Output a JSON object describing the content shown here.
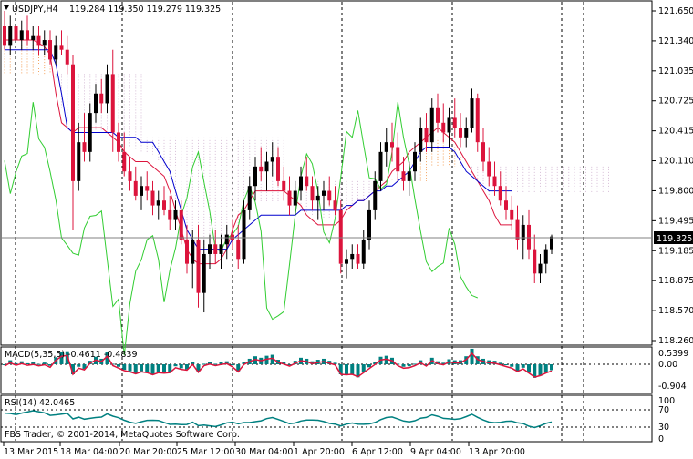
{
  "header": {
    "symbol": "USDJPY,H4",
    "ohlc": "119.284 119.350 119.279 119.325"
  },
  "price_panel": {
    "last_price": "119.325",
    "y_ticks": [
      "121.650",
      "121.340",
      "121.035",
      "120.725",
      "120.415",
      "120.110",
      "119.800",
      "119.495",
      "119.185",
      "118.875",
      "118.570",
      "118.260"
    ]
  },
  "macd_panel": {
    "label": "MACD(5,35,5) -0.4611 -0.4839",
    "y_ticks": [
      "0.5399",
      "0.00",
      "-0.904"
    ]
  },
  "rsi_panel": {
    "label": "RSI(14) 42.0465",
    "copyright": "FBS Trader, © 2001-2014, MetaQuotes Software Corp.",
    "y_ticks": [
      "100",
      "70",
      "30",
      "0"
    ]
  },
  "time_axis": {
    "labels": [
      "13 Mar 2015",
      "18 Mar 04:00",
      "20 Mar 20:00",
      "25 Mar 12:00",
      "30 Mar 04:00",
      "1 Apr 20:00",
      "6 Apr 12:00",
      "9 Apr 04:00",
      "13 Apr 20:00"
    ]
  },
  "colors": {
    "bull": "#000000",
    "bear": "#dc143c",
    "tenkan": "#dc143c",
    "kijun": "#0000cd",
    "chikou": "#32cd32",
    "kumo_a": "#f4a460",
    "kumo_b": "#d8bfd8",
    "macd_hist": "#008080",
    "macd_signal": "#dc143c",
    "rsi": "#008080"
  },
  "chart_data": {
    "type": "candlestick",
    "symbol": "USDJPY",
    "timeframe": "H4",
    "ylim": [
      118.26,
      121.65
    ],
    "candles": [
      {
        "o": 121.5,
        "h": 121.65,
        "l": 121.25,
        "c": 121.3
      },
      {
        "o": 121.3,
        "h": 121.6,
        "l": 121.2,
        "c": 121.5
      },
      {
        "o": 121.5,
        "h": 121.55,
        "l": 121.2,
        "c": 121.35
      },
      {
        "o": 121.35,
        "h": 121.55,
        "l": 121.25,
        "c": 121.45
      },
      {
        "o": 121.45,
        "h": 121.6,
        "l": 121.3,
        "c": 121.35
      },
      {
        "o": 121.35,
        "h": 121.5,
        "l": 121.25,
        "c": 121.4
      },
      {
        "o": 121.4,
        "h": 121.5,
        "l": 121.2,
        "c": 121.3
      },
      {
        "o": 121.3,
        "h": 121.45,
        "l": 121.2,
        "c": 121.35
      },
      {
        "o": 121.35,
        "h": 121.45,
        "l": 121.1,
        "c": 121.15
      },
      {
        "o": 121.15,
        "h": 121.4,
        "l": 121.1,
        "c": 121.3
      },
      {
        "o": 121.3,
        "h": 121.45,
        "l": 121.2,
        "c": 121.25
      },
      {
        "o": 121.25,
        "h": 121.4,
        "l": 121.0,
        "c": 121.1
      },
      {
        "o": 121.1,
        "h": 121.2,
        "l": 119.4,
        "c": 119.9
      },
      {
        "o": 119.9,
        "h": 120.5,
        "l": 119.8,
        "c": 120.3
      },
      {
        "o": 120.3,
        "h": 120.6,
        "l": 120.1,
        "c": 120.2
      },
      {
        "o": 120.2,
        "h": 120.7,
        "l": 120.1,
        "c": 120.6
      },
      {
        "o": 120.6,
        "h": 120.9,
        "l": 120.5,
        "c": 120.8
      },
      {
        "o": 120.8,
        "h": 120.95,
        "l": 120.6,
        "c": 120.7
      },
      {
        "o": 120.7,
        "h": 121.1,
        "l": 120.6,
        "c": 121.0
      },
      {
        "o": 121.0,
        "h": 121.25,
        "l": 120.2,
        "c": 120.4
      },
      {
        "o": 120.4,
        "h": 120.5,
        "l": 120.1,
        "c": 120.2
      },
      {
        "o": 120.2,
        "h": 120.4,
        "l": 119.95,
        "c": 120.0
      },
      {
        "o": 120.0,
        "h": 120.15,
        "l": 119.8,
        "c": 119.9
      },
      {
        "o": 119.9,
        "h": 120.05,
        "l": 119.7,
        "c": 119.75
      },
      {
        "o": 119.75,
        "h": 119.95,
        "l": 119.6,
        "c": 119.85
      },
      {
        "o": 119.85,
        "h": 120.0,
        "l": 119.7,
        "c": 119.8
      },
      {
        "o": 119.8,
        "h": 119.9,
        "l": 119.55,
        "c": 119.65
      },
      {
        "o": 119.65,
        "h": 119.8,
        "l": 119.5,
        "c": 119.7
      },
      {
        "o": 119.7,
        "h": 119.85,
        "l": 119.55,
        "c": 119.6
      },
      {
        "o": 119.6,
        "h": 119.75,
        "l": 119.4,
        "c": 119.5
      },
      {
        "o": 119.5,
        "h": 119.7,
        "l": 119.4,
        "c": 119.6
      },
      {
        "o": 119.6,
        "h": 119.7,
        "l": 119.25,
        "c": 119.3
      },
      {
        "o": 119.3,
        "h": 119.45,
        "l": 118.95,
        "c": 119.05
      },
      {
        "o": 119.05,
        "h": 119.4,
        "l": 118.8,
        "c": 119.3
      },
      {
        "o": 119.3,
        "h": 119.45,
        "l": 118.6,
        "c": 118.75
      },
      {
        "o": 118.75,
        "h": 119.3,
        "l": 118.55,
        "c": 119.15
      },
      {
        "o": 119.15,
        "h": 119.35,
        "l": 119.0,
        "c": 119.25
      },
      {
        "o": 119.25,
        "h": 119.4,
        "l": 119.05,
        "c": 119.15
      },
      {
        "o": 119.15,
        "h": 119.35,
        "l": 119.0,
        "c": 119.25
      },
      {
        "o": 119.25,
        "h": 119.45,
        "l": 119.1,
        "c": 119.35
      },
      {
        "o": 119.35,
        "h": 119.5,
        "l": 119.2,
        "c": 119.3
      },
      {
        "o": 119.3,
        "h": 119.45,
        "l": 119.0,
        "c": 119.1
      },
      {
        "o": 119.1,
        "h": 119.7,
        "l": 119.05,
        "c": 119.6
      },
      {
        "o": 119.6,
        "h": 119.95,
        "l": 119.5,
        "c": 119.85
      },
      {
        "o": 119.85,
        "h": 120.15,
        "l": 119.7,
        "c": 120.05
      },
      {
        "o": 120.05,
        "h": 120.25,
        "l": 119.9,
        "c": 120.0
      },
      {
        "o": 120.0,
        "h": 120.2,
        "l": 119.8,
        "c": 120.1
      },
      {
        "o": 120.1,
        "h": 120.3,
        "l": 119.95,
        "c": 120.15
      },
      {
        "o": 120.15,
        "h": 120.25,
        "l": 119.85,
        "c": 119.9
      },
      {
        "o": 119.9,
        "h": 120.05,
        "l": 119.7,
        "c": 119.8
      },
      {
        "o": 119.8,
        "h": 119.95,
        "l": 119.55,
        "c": 119.65
      },
      {
        "o": 119.65,
        "h": 119.9,
        "l": 119.55,
        "c": 119.8
      },
      {
        "o": 119.8,
        "h": 120.05,
        "l": 119.7,
        "c": 119.95
      },
      {
        "o": 119.95,
        "h": 120.15,
        "l": 119.8,
        "c": 119.85
      },
      {
        "o": 119.85,
        "h": 119.95,
        "l": 119.6,
        "c": 119.7
      },
      {
        "o": 119.7,
        "h": 119.85,
        "l": 119.5,
        "c": 119.75
      },
      {
        "o": 119.75,
        "h": 119.9,
        "l": 119.6,
        "c": 119.8
      },
      {
        "o": 119.8,
        "h": 119.95,
        "l": 119.65,
        "c": 119.7
      },
      {
        "o": 119.7,
        "h": 119.85,
        "l": 119.55,
        "c": 119.6
      },
      {
        "o": 119.6,
        "h": 119.7,
        "l": 118.95,
        "c": 119.05
      },
      {
        "o": 119.05,
        "h": 119.2,
        "l": 118.9,
        "c": 119.1
      },
      {
        "o": 119.1,
        "h": 119.25,
        "l": 119.0,
        "c": 119.15
      },
      {
        "o": 119.15,
        "h": 119.25,
        "l": 119.0,
        "c": 119.05
      },
      {
        "o": 119.05,
        "h": 119.4,
        "l": 119.0,
        "c": 119.3
      },
      {
        "o": 119.3,
        "h": 119.7,
        "l": 119.2,
        "c": 119.6
      },
      {
        "o": 119.6,
        "h": 120.0,
        "l": 119.5,
        "c": 119.9
      },
      {
        "o": 119.9,
        "h": 120.3,
        "l": 119.8,
        "c": 120.2
      },
      {
        "o": 120.2,
        "h": 120.45,
        "l": 120.05,
        "c": 120.3
      },
      {
        "o": 120.3,
        "h": 120.5,
        "l": 120.1,
        "c": 120.25
      },
      {
        "o": 120.25,
        "h": 120.4,
        "l": 119.9,
        "c": 120.0
      },
      {
        "o": 120.0,
        "h": 120.15,
        "l": 119.8,
        "c": 119.9
      },
      {
        "o": 119.9,
        "h": 120.1,
        "l": 119.75,
        "c": 120.0
      },
      {
        "o": 120.0,
        "h": 120.3,
        "l": 119.9,
        "c": 120.2
      },
      {
        "o": 120.2,
        "h": 120.55,
        "l": 120.1,
        "c": 120.45
      },
      {
        "o": 120.45,
        "h": 120.6,
        "l": 120.2,
        "c": 120.3
      },
      {
        "o": 120.3,
        "h": 120.75,
        "l": 120.2,
        "c": 120.65
      },
      {
        "o": 120.65,
        "h": 120.8,
        "l": 120.4,
        "c": 120.5
      },
      {
        "o": 120.5,
        "h": 120.7,
        "l": 120.3,
        "c": 120.4
      },
      {
        "o": 120.4,
        "h": 120.65,
        "l": 120.25,
        "c": 120.55
      },
      {
        "o": 120.55,
        "h": 120.75,
        "l": 120.35,
        "c": 120.45
      },
      {
        "o": 120.45,
        "h": 120.6,
        "l": 120.25,
        "c": 120.35
      },
      {
        "o": 120.35,
        "h": 120.55,
        "l": 120.25,
        "c": 120.45
      },
      {
        "o": 120.45,
        "h": 120.85,
        "l": 120.4,
        "c": 120.75
      },
      {
        "o": 120.75,
        "h": 120.8,
        "l": 120.2,
        "c": 120.3
      },
      {
        "o": 120.3,
        "h": 120.45,
        "l": 120.0,
        "c": 120.1
      },
      {
        "o": 120.1,
        "h": 120.25,
        "l": 119.85,
        "c": 119.95
      },
      {
        "o": 119.95,
        "h": 120.1,
        "l": 119.75,
        "c": 119.85
      },
      {
        "o": 119.85,
        "h": 120.0,
        "l": 119.65,
        "c": 119.7
      },
      {
        "o": 119.7,
        "h": 119.85,
        "l": 119.5,
        "c": 119.6
      },
      {
        "o": 119.6,
        "h": 119.75,
        "l": 119.4,
        "c": 119.5
      },
      {
        "o": 119.5,
        "h": 119.65,
        "l": 119.2,
        "c": 119.3
      },
      {
        "o": 119.3,
        "h": 119.55,
        "l": 119.1,
        "c": 119.45
      },
      {
        "o": 119.45,
        "h": 119.6,
        "l": 119.1,
        "c": 119.2
      },
      {
        "o": 119.2,
        "h": 119.35,
        "l": 118.85,
        "c": 118.95
      },
      {
        "o": 118.95,
        "h": 119.15,
        "l": 118.85,
        "c": 119.05
      },
      {
        "o": 119.05,
        "h": 119.25,
        "l": 118.95,
        "c": 119.2
      },
      {
        "o": 119.2,
        "h": 119.35,
        "l": 119.15,
        "c": 119.33
      }
    ],
    "tenkan_sen": [
      121.35,
      121.35,
      121.35,
      121.35,
      121.35,
      121.35,
      121.32,
      121.28,
      121.2,
      120.8,
      120.5,
      120.45,
      120.4,
      120.45,
      120.45,
      120.45,
      120.45,
      120.45,
      120.4,
      120.35,
      120.3,
      120.2,
      120.15,
      120.1,
      120.1,
      120.1,
      120.05,
      120.0,
      119.95,
      119.8,
      119.6,
      119.4,
      119.2,
      119.1,
      119.05,
      119.05,
      119.05,
      119.05,
      119.1,
      119.2,
      119.4,
      119.55,
      119.6,
      119.7,
      119.8,
      119.8,
      119.8,
      119.8,
      119.8,
      119.8,
      119.75,
      119.7,
      119.65,
      119.55,
      119.5,
      119.45,
      119.45,
      119.45,
      119.45,
      119.5,
      119.6,
      119.65,
      119.7,
      119.7,
      119.75,
      119.8,
      119.85,
      119.9,
      120.0,
      120.05,
      120.1,
      120.2,
      120.25,
      120.3,
      120.35,
      120.4,
      120.45,
      120.4,
      120.35,
      120.3,
      120.2,
      120.1,
      120.0,
      119.9,
      119.8,
      119.7,
      119.55,
      119.45,
      119.45,
      119.45
    ],
    "kijun_sen": [
      121.25,
      121.25,
      121.25,
      121.25,
      121.25,
      121.25,
      121.25,
      121.25,
      121.25,
      121.1,
      120.8,
      120.45,
      120.4,
      120.4,
      120.4,
      120.4,
      120.4,
      120.4,
      120.4,
      120.4,
      120.35,
      120.35,
      120.35,
      120.35,
      120.3,
      120.3,
      120.3,
      120.2,
      120.1,
      120.0,
      119.8,
      119.6,
      119.4,
      119.3,
      119.2,
      119.2,
      119.2,
      119.2,
      119.2,
      119.2,
      119.3,
      119.35,
      119.4,
      119.45,
      119.5,
      119.55,
      119.55,
      119.55,
      119.55,
      119.55,
      119.55,
      119.55,
      119.6,
      119.6,
      119.6,
      119.6,
      119.6,
      119.6,
      119.6,
      119.6,
      119.65,
      119.65,
      119.7,
      119.7,
      119.75,
      119.8,
      119.8,
      119.85,
      119.85,
      119.9,
      119.95,
      120.0,
      120.1,
      120.2,
      120.25,
      120.25,
      120.25,
      120.25,
      120.25,
      120.2,
      120.1,
      120.0,
      119.95,
      119.9,
      119.85,
      119.8,
      119.8,
      119.8,
      119.8,
      119.8
    ]
  }
}
